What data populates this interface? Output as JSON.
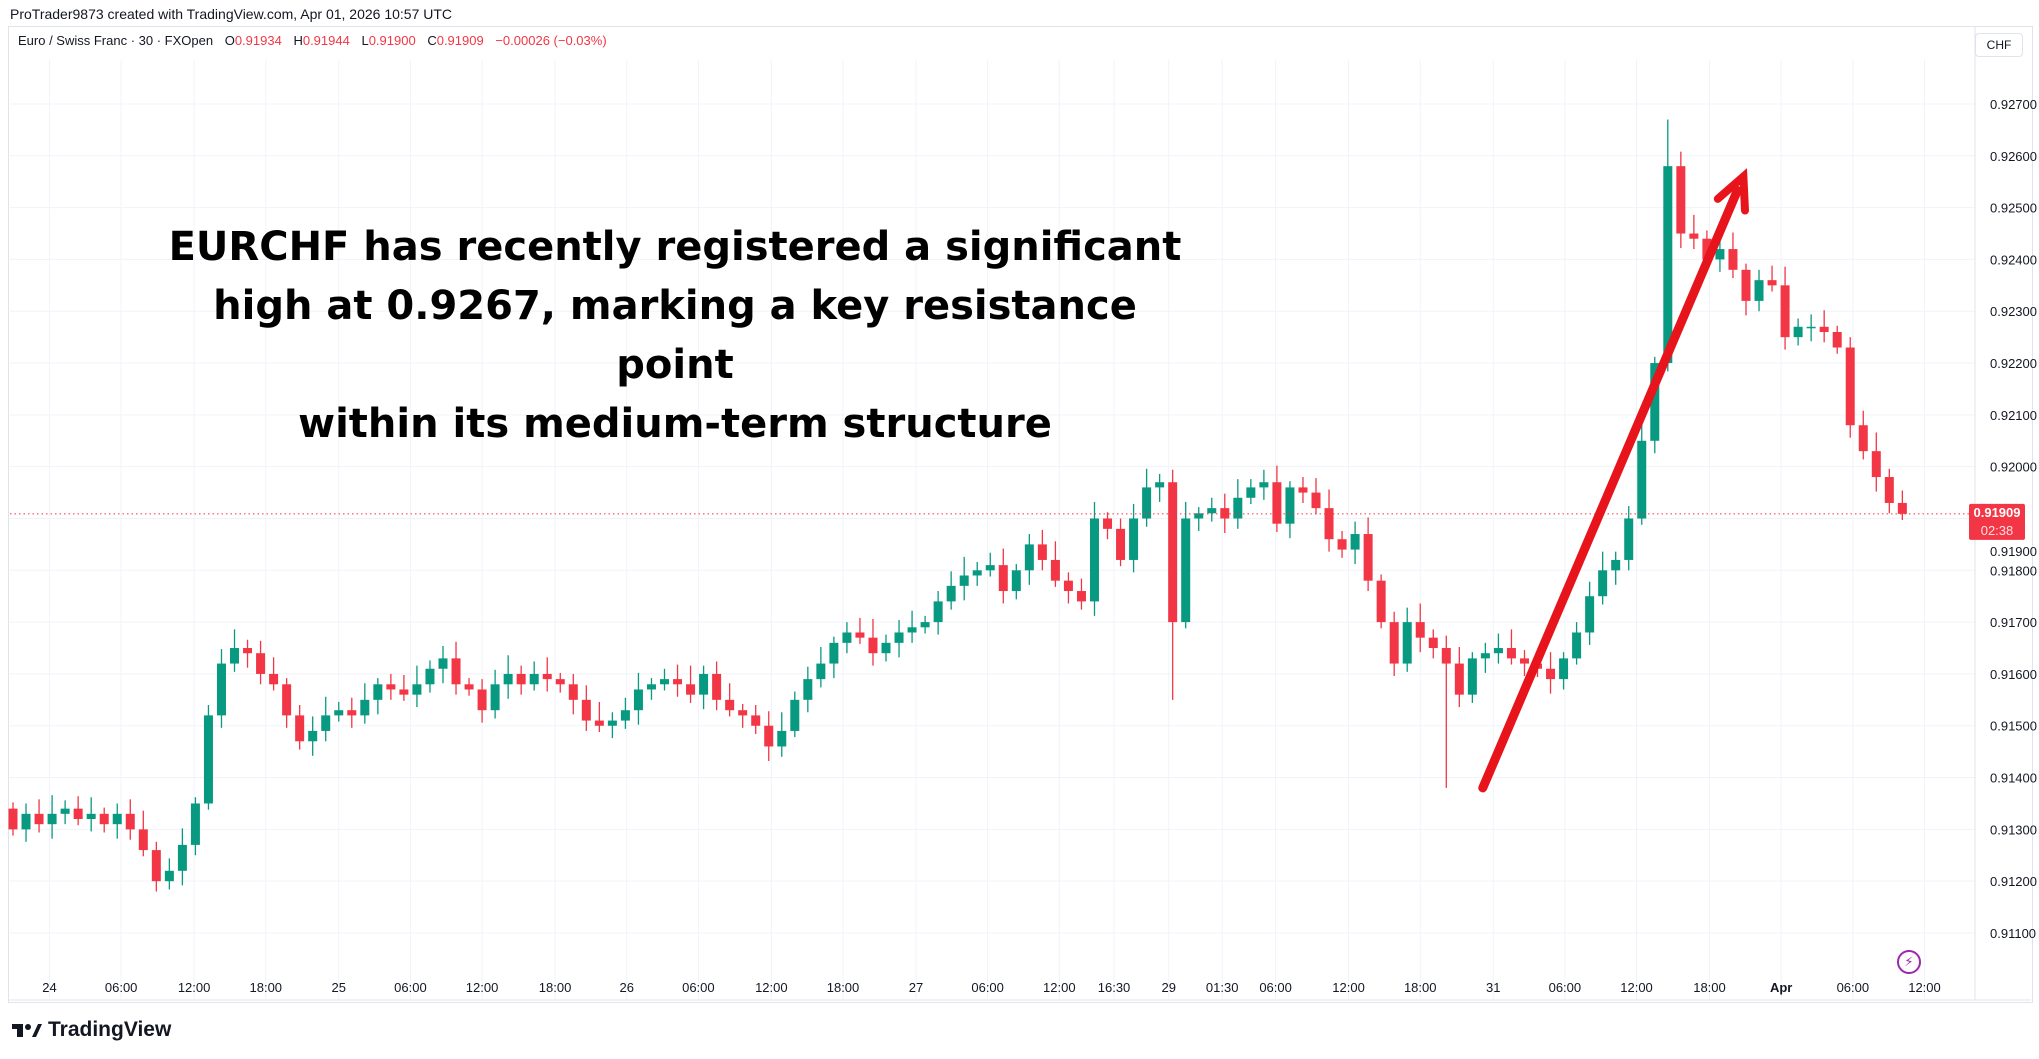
{
  "header": {
    "credit": "ProTrader9873 created with TradingView.com, Apr 01, 2026 10:57 UTC"
  },
  "legend": {
    "symbol": "Euro / Swiss Franc · 30 · FXOpen",
    "o_label": "O",
    "o": "0.91934",
    "h_label": "H",
    "h": "0.91944",
    "l_label": "L",
    "l": "0.91900",
    "c_label": "C",
    "c": "0.91909",
    "change": "−0.00026 (−0.03%)"
  },
  "currency": "CHF",
  "last_price": {
    "value": "0.91909",
    "countdown": "02:38"
  },
  "annotation": {
    "line1": "EURCHF has recently registered a significant",
    "line2": "high at 0.9267, marking a key resistance point",
    "line3": "within its medium-term structure"
  },
  "footer": {
    "brand": "TradingView"
  },
  "colors": {
    "up": "#089981",
    "down": "#f23645",
    "arrow": "#e8141c",
    "grid": "#f0f3fa"
  },
  "chart_data": {
    "type": "candlestick",
    "title": "Euro / Swiss Franc · 30 · FXOpen",
    "ylim": [
      0.9103,
      0.9275
    ],
    "y_ticks": [
      "0.92700",
      "0.92600",
      "0.92500",
      "0.92400",
      "0.92300",
      "0.92200",
      "0.92100",
      "0.92000",
      "0.91900",
      "0.91800",
      "0.91700",
      "0.91600",
      "0.91500",
      "0.91400",
      "0.91300",
      "0.91200",
      "0.91100"
    ],
    "x_labels": [
      {
        "t": "24",
        "i": 2.8
      },
      {
        "t": "06:00",
        "i": 8.3
      },
      {
        "t": "12:00",
        "i": 13.9
      },
      {
        "t": "18:00",
        "i": 19.4
      },
      {
        "t": "25",
        "i": 25
      },
      {
        "t": "06:00",
        "i": 30.5
      },
      {
        "t": "12:00",
        "i": 36
      },
      {
        "t": "18:00",
        "i": 41.6
      },
      {
        "t": "26",
        "i": 47.1
      },
      {
        "t": "06:00",
        "i": 52.6
      },
      {
        "t": "12:00",
        "i": 58.2
      },
      {
        "t": "18:00",
        "i": 63.7
      },
      {
        "t": "27",
        "i": 69.3
      },
      {
        "t": "06:00",
        "i": 74.8
      },
      {
        "t": "12:00",
        "i": 80.3
      },
      {
        "t": "16:30",
        "i": 84.5
      },
      {
        "t": "29",
        "i": 88.7
      },
      {
        "t": "01:30",
        "i": 92.8
      },
      {
        "t": "06:00",
        "i": 96.9
      },
      {
        "t": "12:00",
        "i": 102.5
      },
      {
        "t": "18:00",
        "i": 108
      },
      {
        "t": "31",
        "i": 113.6
      },
      {
        "t": "06:00",
        "i": 119.1
      },
      {
        "t": "12:00",
        "i": 124.6
      },
      {
        "t": "18:00",
        "i": 130.2
      },
      {
        "t": "Apr",
        "i": 135.7
      },
      {
        "t": "06:00",
        "i": 141.2
      },
      {
        "t": "12:00",
        "i": 146.7
      }
    ],
    "start_open": 0.9134,
    "closes": [
      0.913,
      0.9133,
      0.9131,
      0.9133,
      0.9134,
      0.9132,
      0.9133,
      0.9131,
      0.9133,
      0.913,
      0.9126,
      0.912,
      0.9122,
      0.9127,
      0.9135,
      0.9152,
      0.9162,
      0.9165,
      0.9164,
      0.916,
      0.9158,
      0.9152,
      0.9147,
      0.9149,
      0.9152,
      0.9153,
      0.9152,
      0.9155,
      0.9158,
      0.9157,
      0.9156,
      0.9158,
      0.9161,
      0.9163,
      0.9158,
      0.9157,
      0.9153,
      0.9158,
      0.916,
      0.9158,
      0.916,
      0.9159,
      0.9158,
      0.9155,
      0.9151,
      0.915,
      0.9151,
      0.9153,
      0.9157,
      0.9158,
      0.9159,
      0.9158,
      0.9156,
      0.916,
      0.9155,
      0.9153,
      0.9152,
      0.915,
      0.9146,
      0.9149,
      0.9155,
      0.9159,
      0.9162,
      0.9166,
      0.9168,
      0.9167,
      0.9164,
      0.9166,
      0.9168,
      0.9169,
      0.917,
      0.9174,
      0.9177,
      0.9179,
      0.918,
      0.9181,
      0.9176,
      0.918,
      0.9185,
      0.9182,
      0.9178,
      0.9176,
      0.9174,
      0.919,
      0.9188,
      0.9182,
      0.919,
      0.9196,
      0.9197,
      0.917,
      0.919,
      0.9191,
      0.9192,
      0.919,
      0.9194,
      0.9196,
      0.9197,
      0.9189,
      0.9196,
      0.9195,
      0.9192,
      0.9186,
      0.9184,
      0.9187,
      0.9178,
      0.917,
      0.9162,
      0.917,
      0.9167,
      0.9165,
      0.9162,
      0.9156,
      0.9163,
      0.9164,
      0.9165,
      0.9163,
      0.9162,
      0.9161,
      0.9159,
      0.9163,
      0.9168,
      0.9175,
      0.918,
      0.9182,
      0.919,
      0.9205,
      0.922,
      0.9258,
      0.9245,
      0.9244,
      0.924,
      0.9242,
      0.9238,
      0.9232,
      0.9236,
      0.9235,
      0.9225,
      0.9227,
      0.9227,
      0.9226,
      0.9223,
      0.9208,
      0.9203,
      0.9198,
      0.9193,
      0.91909
    ],
    "extremes": [
      {
        "i": 127,
        "high": 0.9267
      },
      {
        "i": 110,
        "low": 0.9138
      },
      {
        "i": 89,
        "low": 0.9155
      },
      {
        "i": 11,
        "low": 0.9118
      }
    ],
    "last_price": 0.91909,
    "arrow": {
      "from": {
        "i": 112.8,
        "p": 0.9138
      },
      "to": {
        "i": 132.8,
        "p": 0.9256
      }
    }
  }
}
